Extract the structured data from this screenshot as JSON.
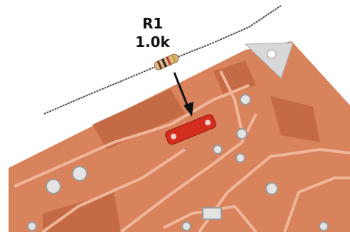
{
  "labels": {
    "reference": "R1",
    "value": "1.0k"
  }
}
